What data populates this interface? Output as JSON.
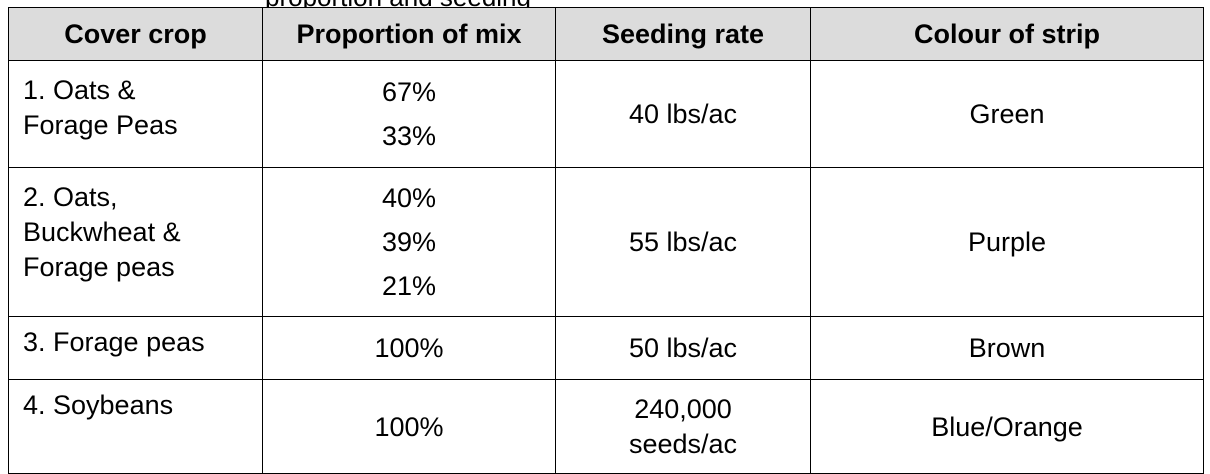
{
  "caption": {
    "left_fragment": "",
    "middle_fragment": "proportion and seeding"
  },
  "table": {
    "headers": [
      "Cover crop",
      "Proportion of mix",
      "Seeding rate",
      "Colour of strip"
    ],
    "rows": [
      {
        "crop_lines": [
          "1. Oats &",
          "Forage Peas"
        ],
        "proportions": [
          "67%",
          "33%"
        ],
        "rate_lines": [
          "40 lbs/ac"
        ],
        "colour": "Green"
      },
      {
        "crop_lines": [
          "2. Oats,",
          "Buckwheat &",
          "Forage peas"
        ],
        "proportions": [
          "40%",
          "39%",
          "21%"
        ],
        "rate_lines": [
          "55 lbs/ac"
        ],
        "colour": "Purple"
      },
      {
        "crop_lines": [
          "3. Forage peas"
        ],
        "proportions": [
          "100%"
        ],
        "rate_lines": [
          "50 lbs/ac"
        ],
        "colour": "Brown"
      },
      {
        "crop_lines": [
          "4. Soybeans"
        ],
        "proportions": [
          "100%"
        ],
        "rate_lines": [
          "240,000",
          "seeds/ac"
        ],
        "colour": "Blue/Orange"
      }
    ]
  }
}
